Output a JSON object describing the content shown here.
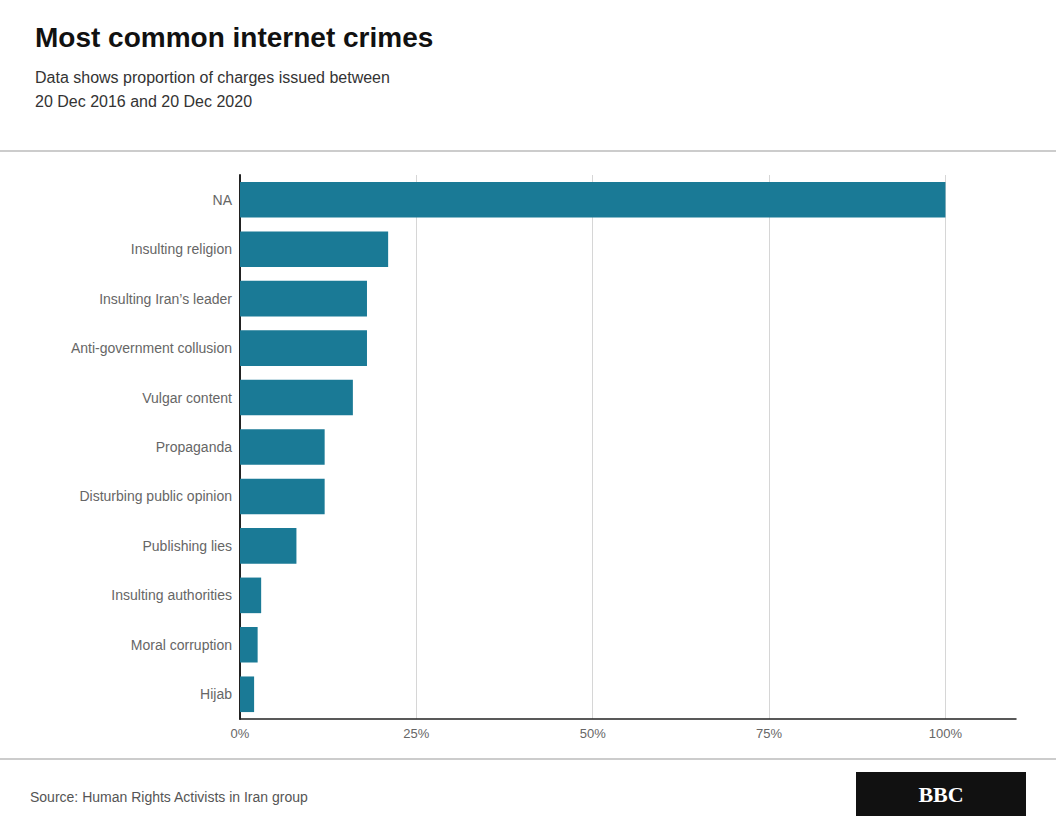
{
  "chart_data": {
    "type": "bar",
    "orientation": "horizontal",
    "title": "Most common internet crimes",
    "subtitle": "Data shows proportion of charges issued between\n20 Dec 2016 and 20 Dec 2020",
    "source": "Source: Human Rights Activists in Iran group",
    "annotations": [
      "BBC"
    ],
    "categories": [
      "Hijab",
      "Moral corruption",
      "Insulting authorities",
      "Publishing lies",
      "Disturbing public opinion",
      "Propaganda",
      "Vulgar content",
      "Anti-government collusion",
      "Insulting Iran’s leader",
      "Insulting religion",
      "NA"
    ],
    "values": [
      2,
      2.5,
      3,
      8,
      12,
      12,
      16,
      18,
      18,
      21,
      100
    ],
    "color": "#1a7a96",
    "xlim": [
      0,
      110
    ],
    "xticks": [
      {
        "value": 0,
        "label": "0%"
      },
      {
        "value": 25,
        "label": "25%"
      },
      {
        "value": 50,
        "label": "50%"
      },
      {
        "value": 75,
        "label": "75%"
      },
      {
        "value": 100,
        "label": "100%"
      }
    ],
    "grid": true
  }
}
